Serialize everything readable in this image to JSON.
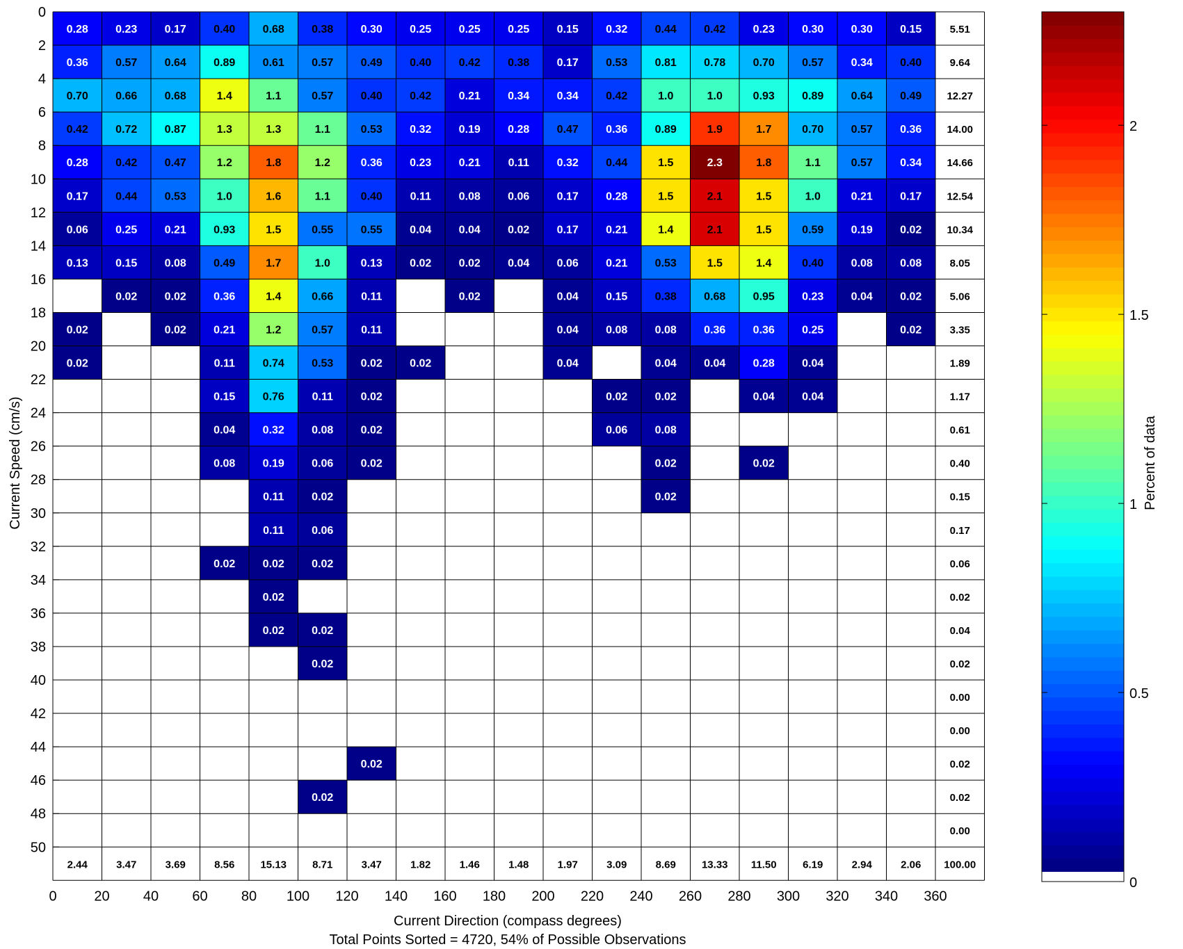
{
  "chart_data": {
    "type": "heatmap",
    "title": "",
    "xlabel": "Current Direction (compass degrees)",
    "ylabel": "Current Speed (cm/s)",
    "footer": "Total Points Sorted = 4720, 54% of Possible Observations",
    "colorbar_label": "Percent of data",
    "colormap": "jet",
    "colorbar_range": [
      0,
      2.3
    ],
    "colorbar_ticks": [
      "0",
      "0.5",
      "1",
      "1.5",
      "2"
    ],
    "x_bin_edges": [
      0,
      20,
      40,
      60,
      80,
      100,
      120,
      140,
      160,
      180,
      200,
      220,
      240,
      260,
      280,
      300,
      320,
      340,
      360
    ],
    "y_bin_edges": [
      0,
      2,
      4,
      6,
      8,
      10,
      12,
      14,
      16,
      18,
      20,
      22,
      24,
      26,
      28,
      30,
      32,
      34,
      36,
      38,
      40,
      42,
      44,
      46,
      48,
      50
    ],
    "x_tick_labels": [
      "0",
      "20",
      "40",
      "60",
      "80",
      "100",
      "120",
      "140",
      "160",
      "180",
      "200",
      "220",
      "240",
      "260",
      "280",
      "300",
      "320",
      "340",
      "360"
    ],
    "y_tick_labels": [
      "0",
      "2",
      "4",
      "6",
      "8",
      "10",
      "12",
      "14",
      "16",
      "18",
      "20",
      "22",
      "24",
      "26",
      "28",
      "30",
      "32",
      "34",
      "36",
      "38",
      "40",
      "42",
      "44",
      "46",
      "48",
      "50"
    ],
    "cells": [
      [
        "0.28",
        "0.23",
        "0.17",
        "0.40",
        "0.68",
        "0.38",
        "0.30",
        "0.25",
        "0.25",
        "0.25",
        "0.15",
        "0.32",
        "0.44",
        "0.42",
        "0.23",
        "0.30",
        "0.30",
        "0.15"
      ],
      [
        "0.36",
        "0.57",
        "0.64",
        "0.89",
        "0.61",
        "0.57",
        "0.49",
        "0.40",
        "0.42",
        "0.38",
        "0.17",
        "0.53",
        "0.81",
        "0.78",
        "0.70",
        "0.57",
        "0.34",
        "0.40"
      ],
      [
        "0.70",
        "0.66",
        "0.68",
        "1.4",
        "1.1",
        "0.57",
        "0.40",
        "0.42",
        "0.21",
        "0.34",
        "0.34",
        "0.42",
        "1.0",
        "1.0",
        "0.93",
        "0.89",
        "0.64",
        "0.49"
      ],
      [
        "0.42",
        "0.72",
        "0.87",
        "1.3",
        "1.3",
        "1.1",
        "0.53",
        "0.32",
        "0.19",
        "0.28",
        "0.47",
        "0.36",
        "0.89",
        "1.9",
        "1.7",
        "0.70",
        "0.57",
        "0.36"
      ],
      [
        "0.28",
        "0.42",
        "0.47",
        "1.2",
        "1.8",
        "1.2",
        "0.36",
        "0.23",
        "0.21",
        "0.11",
        "0.32",
        "0.44",
        "1.5",
        "2.3",
        "1.8",
        "1.1",
        "0.57",
        "0.34"
      ],
      [
        "0.17",
        "0.44",
        "0.53",
        "1.0",
        "1.6",
        "1.1",
        "0.40",
        "0.11",
        "0.08",
        "0.06",
        "0.17",
        "0.28",
        "1.5",
        "2.1",
        "1.5",
        "1.0",
        "0.21",
        "0.17"
      ],
      [
        "0.06",
        "0.25",
        "0.21",
        "0.93",
        "1.5",
        "0.55",
        "0.55",
        "0.04",
        "0.04",
        "0.02",
        "0.17",
        "0.21",
        "1.4",
        "2.1",
        "1.5",
        "0.59",
        "0.19",
        "0.02"
      ],
      [
        "0.13",
        "0.15",
        "0.08",
        "0.49",
        "1.7",
        "1.0",
        "0.13",
        "0.02",
        "0.02",
        "0.04",
        "0.06",
        "0.21",
        "0.53",
        "1.5",
        "1.4",
        "0.40",
        "0.08",
        "0.08"
      ],
      [
        "",
        "0.02",
        "0.02",
        "0.36",
        "1.4",
        "0.66",
        "0.11",
        "",
        "0.02",
        "",
        "0.04",
        "0.15",
        "0.38",
        "0.68",
        "0.95",
        "0.23",
        "0.04",
        "0.02"
      ],
      [
        "0.02",
        "",
        "0.02",
        "0.21",
        "1.2",
        "0.57",
        "0.11",
        "",
        "",
        "",
        "0.04",
        "0.08",
        "0.08",
        "0.36",
        "0.36",
        "0.25",
        "",
        "0.02"
      ],
      [
        "0.02",
        "",
        "",
        "0.11",
        "0.74",
        "0.53",
        "0.02",
        "0.02",
        "",
        "",
        "0.04",
        "",
        "0.04",
        "0.04",
        "0.28",
        "0.04",
        "",
        ""
      ],
      [
        "",
        "",
        "",
        "0.15",
        "0.76",
        "0.11",
        "0.02",
        "",
        "",
        "",
        "",
        "0.02",
        "0.02",
        "",
        "0.04",
        "0.04",
        "",
        ""
      ],
      [
        "",
        "",
        "",
        "0.04",
        "0.32",
        "0.08",
        "0.02",
        "",
        "",
        "",
        "",
        "0.06",
        "0.08",
        "",
        "",
        "",
        "",
        ""
      ],
      [
        "",
        "",
        "",
        "0.08",
        "0.19",
        "0.06",
        "0.02",
        "",
        "",
        "",
        "",
        "",
        "0.02",
        "",
        "0.02",
        "",
        "",
        ""
      ],
      [
        "",
        "",
        "",
        "",
        "0.11",
        "0.02",
        "",
        "",
        "",
        "",
        "",
        "",
        "0.02",
        "",
        "",
        "",
        "",
        ""
      ],
      [
        "",
        "",
        "",
        "",
        "0.11",
        "0.06",
        "",
        "",
        "",
        "",
        "",
        "",
        "",
        "",
        "",
        "",
        "",
        ""
      ],
      [
        "",
        "",
        "",
        "0.02",
        "0.02",
        "0.02",
        "",
        "",
        "",
        "",
        "",
        "",
        "",
        "",
        "",
        "",
        "",
        ""
      ],
      [
        "",
        "",
        "",
        "",
        "0.02",
        "",
        "",
        "",
        "",
        "",
        "",
        "",
        "",
        "",
        "",
        "",
        "",
        ""
      ],
      [
        "",
        "",
        "",
        "",
        "0.02",
        "0.02",
        "",
        "",
        "",
        "",
        "",
        "",
        "",
        "",
        "",
        "",
        "",
        ""
      ],
      [
        "",
        "",
        "",
        "",
        "",
        "0.02",
        "",
        "",
        "",
        "",
        "",
        "",
        "",
        "",
        "",
        "",
        "",
        ""
      ],
      [
        "",
        "",
        "",
        "",
        "",
        "",
        "",
        "",
        "",
        "",
        "",
        "",
        "",
        "",
        "",
        "",
        "",
        ""
      ],
      [
        "",
        "",
        "",
        "",
        "",
        "",
        "",
        "",
        "",
        "",
        "",
        "",
        "",
        "",
        "",
        "",
        "",
        ""
      ],
      [
        "",
        "",
        "",
        "",
        "",
        "",
        "0.02",
        "",
        "",
        "",
        "",
        "",
        "",
        "",
        "",
        "",
        "",
        ""
      ],
      [
        "",
        "",
        "",
        "",
        "",
        "0.02",
        "",
        "",
        "",
        "",
        "",
        "",
        "",
        "",
        "",
        "",
        "",
        ""
      ],
      [
        "",
        "",
        "",
        "",
        "",
        "",
        "",
        "",
        "",
        "",
        "",
        "",
        "",
        "",
        "",
        "",
        "",
        ""
      ]
    ],
    "row_totals": [
      "5.51",
      "9.64",
      "12.27",
      "14.00",
      "14.66",
      "12.54",
      "10.34",
      "8.05",
      "5.06",
      "3.35",
      "1.89",
      "1.17",
      "0.61",
      "0.40",
      "0.15",
      "0.17",
      "0.06",
      "0.02",
      "0.04",
      "0.02",
      "0.00",
      "0.00",
      "0.02",
      "0.02",
      "0.00"
    ],
    "column_totals": [
      "2.44",
      "3.47",
      "3.69",
      "8.56",
      "15.13",
      "8.71",
      "3.47",
      "1.82",
      "1.46",
      "1.48",
      "1.97",
      "3.09",
      "8.69",
      "13.33",
      "11.50",
      "6.19",
      "2.94",
      "2.06"
    ],
    "grand_total": "100.00"
  }
}
